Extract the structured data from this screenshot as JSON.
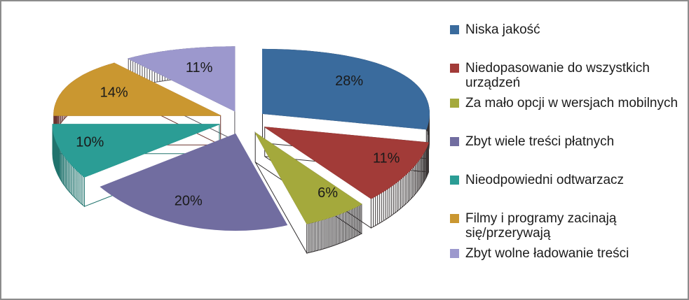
{
  "frame": {
    "background": "#ffffff",
    "border_color": "#8C8C8C"
  },
  "chart_data": {
    "type": "pie",
    "style": "3d-exploded",
    "title": "",
    "legend_position": "right",
    "label_type": "percent",
    "slices": [
      {
        "label": "Niska jakość",
        "value": 28,
        "percent_label": "28%",
        "color": "#3A6B9D",
        "side_color": "#353233"
      },
      {
        "label": "Niedopasowanie do wszystkich\nurządzeń",
        "value": 11,
        "percent_label": "11%",
        "color": "#A23B38",
        "side_color": "#393434"
      },
      {
        "label": "Za mało opcji w wersjach mobilnych",
        "value": 6,
        "percent_label": "6%",
        "color": "#A4A93C",
        "side_color": "#333031"
      },
      {
        "label": "Zbyt wiele treści płatnych",
        "value": 20,
        "percent_label": "20%",
        "color": "#716DA0",
        "side_color": "#3A383A",
        "side_accent": "#6F3A69",
        "side_accent2": "#3A385E"
      },
      {
        "label": "Nieodpowiedni odtwarzacz",
        "value": 10,
        "percent_label": "10%",
        "color": "#2B9D95",
        "side_color": "#20736D"
      },
      {
        "label": "Filmy i programy zacinają\nsię/przerywają",
        "value": 14,
        "percent_label": "14%",
        "color": "#CA9730",
        "side_color": "#6B342F"
      },
      {
        "label": "Zbyt wolne ładowanie treści",
        "value": 11,
        "percent_label": "11%",
        "color": "#9C98CD",
        "side_color": "#56535A"
      }
    ],
    "label_color": "#1a1a1a"
  }
}
